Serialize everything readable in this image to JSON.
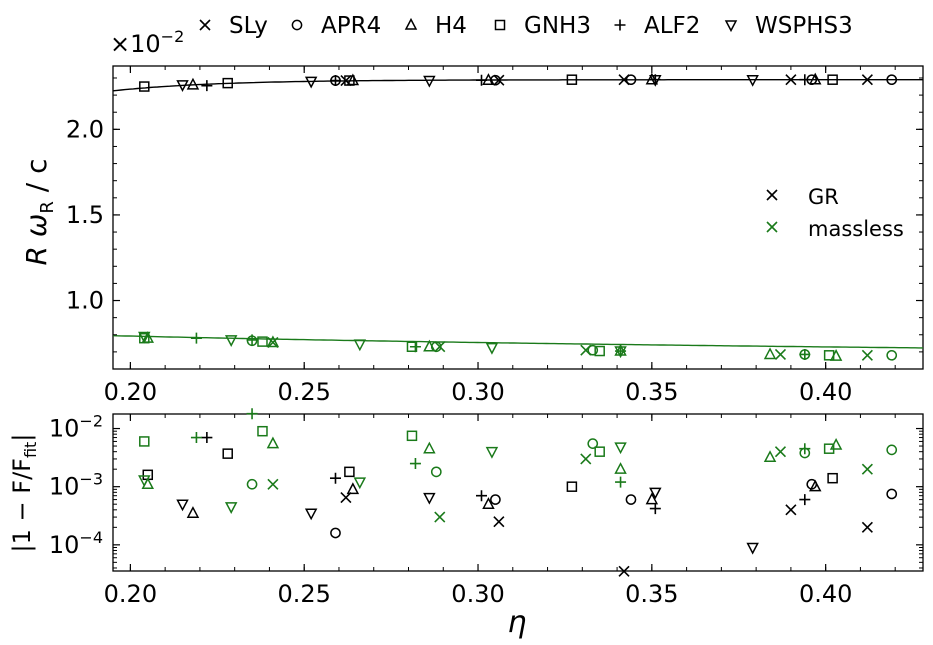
{
  "chart_data": {
    "type": "scatter",
    "xlabel": "η",
    "x_ticks": [
      "0.20",
      "0.25",
      "0.30",
      "0.35",
      "0.40"
    ],
    "x_tick_values": [
      0.2,
      0.25,
      0.3,
      0.35,
      0.4
    ],
    "xlim": [
      0.195,
      0.428
    ],
    "colors": {
      "GR": "#000000",
      "massless": "#1a7a1a"
    },
    "legend_eos": [
      {
        "name": "SLy",
        "marker": "x"
      },
      {
        "name": "APR4",
        "marker": "circle"
      },
      {
        "name": "H4",
        "marker": "triangle-up"
      },
      {
        "name": "GNH3",
        "marker": "square"
      },
      {
        "name": "ALF2",
        "marker": "plus"
      },
      {
        "name": "WSPHS3",
        "marker": "triangle-down"
      }
    ],
    "legend_models": [
      {
        "name": "GR",
        "color_key": "GR"
      },
      {
        "name": "massless",
        "color_key": "massless"
      }
    ],
    "top": {
      "ylabel_R": "R",
      "ylabel_omega": "ω",
      "ylabel_sub": "R",
      "ylabel_tail": " / c",
      "y_offset_base": "×10",
      "y_offset_exp": "−2",
      "ylim": [
        0.6,
        2.37
      ],
      "y_ticks": [
        "1.0",
        "1.5",
        "2.0"
      ],
      "y_tick_values": [
        1.0,
        1.5,
        2.0
      ],
      "fit_GR": {
        "a": 2.29,
        "b": 0.062,
        "c": 0.205
      },
      "fit_massless": {
        "a": 0.79,
        "b": -0.12,
        "c": 0.205
      },
      "GR_points": [
        {
          "eos": "GNH3",
          "x": 0.204,
          "y": 2.25
        },
        {
          "eos": "WSPHS3",
          "x": 0.215,
          "y": 2.26
        },
        {
          "eos": "H4",
          "x": 0.218,
          "y": 2.26
        },
        {
          "eos": "ALF2",
          "x": 0.222,
          "y": 2.255
        },
        {
          "eos": "GNH3",
          "x": 0.228,
          "y": 2.27
        },
        {
          "eos": "WSPHS3",
          "x": 0.252,
          "y": 2.28
        },
        {
          "eos": "APR4",
          "x": 0.259,
          "y": 2.285
        },
        {
          "eos": "ALF2",
          "x": 0.259,
          "y": 2.285
        },
        {
          "eos": "SLy",
          "x": 0.262,
          "y": 2.285
        },
        {
          "eos": "GNH3",
          "x": 0.263,
          "y": 2.285
        },
        {
          "eos": "H4",
          "x": 0.264,
          "y": 2.285
        },
        {
          "eos": "WSPHS3",
          "x": 0.286,
          "y": 2.285
        },
        {
          "eos": "ALF2",
          "x": 0.301,
          "y": 2.287
        },
        {
          "eos": "H4",
          "x": 0.303,
          "y": 2.287
        },
        {
          "eos": "APR4",
          "x": 0.305,
          "y": 2.287
        },
        {
          "eos": "SLy",
          "x": 0.306,
          "y": 2.287
        },
        {
          "eos": "GNH3",
          "x": 0.327,
          "y": 2.29
        },
        {
          "eos": "SLy",
          "x": 0.342,
          "y": 2.29
        },
        {
          "eos": "APR4",
          "x": 0.344,
          "y": 2.29
        },
        {
          "eos": "H4",
          "x": 0.35,
          "y": 2.29
        },
        {
          "eos": "ALF2",
          "x": 0.351,
          "y": 2.29
        },
        {
          "eos": "WSPHS3",
          "x": 0.351,
          "y": 2.29
        },
        {
          "eos": "WSPHS3",
          "x": 0.379,
          "y": 2.29
        },
        {
          "eos": "SLy",
          "x": 0.39,
          "y": 2.29
        },
        {
          "eos": "ALF2",
          "x": 0.394,
          "y": 2.29
        },
        {
          "eos": "APR4",
          "x": 0.396,
          "y": 2.29
        },
        {
          "eos": "H4",
          "x": 0.397,
          "y": 2.29
        },
        {
          "eos": "GNH3",
          "x": 0.402,
          "y": 2.29
        },
        {
          "eos": "SLy",
          "x": 0.412,
          "y": 2.29
        },
        {
          "eos": "APR4",
          "x": 0.419,
          "y": 2.29
        }
      ],
      "massless_points": [
        {
          "eos": "WSPHS3",
          "x": 0.204,
          "y": 0.79
        },
        {
          "eos": "GNH3",
          "x": 0.204,
          "y": 0.78
        },
        {
          "eos": "H4",
          "x": 0.205,
          "y": 0.78
        },
        {
          "eos": "ALF2",
          "x": 0.219,
          "y": 0.78
        },
        {
          "eos": "WSPHS3",
          "x": 0.229,
          "y": 0.77
        },
        {
          "eos": "APR4",
          "x": 0.235,
          "y": 0.765
        },
        {
          "eos": "ALF2",
          "x": 0.235,
          "y": 0.77
        },
        {
          "eos": "GNH3",
          "x": 0.238,
          "y": 0.76
        },
        {
          "eos": "H4",
          "x": 0.241,
          "y": 0.755
        },
        {
          "eos": "SLy",
          "x": 0.241,
          "y": 0.755
        },
        {
          "eos": "WSPHS3",
          "x": 0.266,
          "y": 0.745
        },
        {
          "eos": "GNH3",
          "x": 0.281,
          "y": 0.73
        },
        {
          "eos": "ALF2",
          "x": 0.282,
          "y": 0.73
        },
        {
          "eos": "H4",
          "x": 0.286,
          "y": 0.73
        },
        {
          "eos": "APR4",
          "x": 0.288,
          "y": 0.73
        },
        {
          "eos": "SLy",
          "x": 0.289,
          "y": 0.73
        },
        {
          "eos": "WSPHS3",
          "x": 0.304,
          "y": 0.725
        },
        {
          "eos": "SLy",
          "x": 0.331,
          "y": 0.71
        },
        {
          "eos": "APR4",
          "x": 0.333,
          "y": 0.71
        },
        {
          "eos": "GNH3",
          "x": 0.335,
          "y": 0.705
        },
        {
          "eos": "H4",
          "x": 0.341,
          "y": 0.705
        },
        {
          "eos": "ALF2",
          "x": 0.341,
          "y": 0.705
        },
        {
          "eos": "WSPHS3",
          "x": 0.341,
          "y": 0.705
        },
        {
          "eos": "H4",
          "x": 0.384,
          "y": 0.685
        },
        {
          "eos": "SLy",
          "x": 0.387,
          "y": 0.685
        },
        {
          "eos": "ALF2",
          "x": 0.394,
          "y": 0.685
        },
        {
          "eos": "APR4",
          "x": 0.394,
          "y": 0.685
        },
        {
          "eos": "GNH3",
          "x": 0.401,
          "y": 0.68
        },
        {
          "eos": "H4",
          "x": 0.403,
          "y": 0.675
        },
        {
          "eos": "SLy",
          "x": 0.412,
          "y": 0.68
        },
        {
          "eos": "APR4",
          "x": 0.419,
          "y": 0.68
        }
      ]
    },
    "bottom": {
      "ylabel": "|1 − F/F",
      "ylabel_sub": "fit",
      "ylabel_tail": "|",
      "yscale": "log",
      "ylim_log10": [
        -4.45,
        -1.75
      ],
      "y_ticks": [
        {
          "base": "10",
          "exp": "−4",
          "log": -4
        },
        {
          "base": "10",
          "exp": "−3",
          "log": -3
        },
        {
          "base": "10",
          "exp": "−2",
          "log": -2
        }
      ],
      "GR_points": [
        {
          "eos": "GNH3",
          "x": 0.205,
          "y": 0.0016
        },
        {
          "eos": "WSPHS3",
          "x": 0.215,
          "y": 0.0005
        },
        {
          "eos": "H4",
          "x": 0.218,
          "y": 0.00035
        },
        {
          "eos": "ALF2",
          "x": 0.222,
          "y": 0.007
        },
        {
          "eos": "GNH3",
          "x": 0.228,
          "y": 0.0037
        },
        {
          "eos": "WSPHS3",
          "x": 0.252,
          "y": 0.00035
        },
        {
          "eos": "APR4",
          "x": 0.259,
          "y": 0.00016
        },
        {
          "eos": "ALF2",
          "x": 0.259,
          "y": 0.0014
        },
        {
          "eos": "SLy",
          "x": 0.262,
          "y": 0.00065
        },
        {
          "eos": "GNH3",
          "x": 0.263,
          "y": 0.0018
        },
        {
          "eos": "H4",
          "x": 0.264,
          "y": 0.0009
        },
        {
          "eos": "WSPHS3",
          "x": 0.286,
          "y": 0.00065
        },
        {
          "eos": "ALF2",
          "x": 0.301,
          "y": 0.0007
        },
        {
          "eos": "H4",
          "x": 0.303,
          "y": 0.0005
        },
        {
          "eos": "APR4",
          "x": 0.305,
          "y": 0.0006
        },
        {
          "eos": "SLy",
          "x": 0.306,
          "y": 0.00025
        },
        {
          "eos": "GNH3",
          "x": 0.327,
          "y": 0.001
        },
        {
          "eos": "SLy",
          "x": 0.342,
          "y": 3.5e-05
        },
        {
          "eos": "APR4",
          "x": 0.344,
          "y": 0.0006
        },
        {
          "eos": "H4",
          "x": 0.35,
          "y": 0.0006
        },
        {
          "eos": "ALF2",
          "x": 0.351,
          "y": 0.00042
        },
        {
          "eos": "WSPHS3",
          "x": 0.351,
          "y": 0.0008
        },
        {
          "eos": "WSPHS3",
          "x": 0.379,
          "y": 9e-05
        },
        {
          "eos": "SLy",
          "x": 0.39,
          "y": 0.0004
        },
        {
          "eos": "ALF2",
          "x": 0.394,
          "y": 0.0006
        },
        {
          "eos": "APR4",
          "x": 0.396,
          "y": 0.0011
        },
        {
          "eos": "H4",
          "x": 0.397,
          "y": 0.001
        },
        {
          "eos": "GNH3",
          "x": 0.402,
          "y": 0.0014
        },
        {
          "eos": "SLy",
          "x": 0.412,
          "y": 0.0002
        },
        {
          "eos": "APR4",
          "x": 0.419,
          "y": 0.00075
        }
      ],
      "massless_points": [
        {
          "eos": "GNH3",
          "x": 0.204,
          "y": 0.006
        },
        {
          "eos": "WSPHS3",
          "x": 0.204,
          "y": 0.0013
        },
        {
          "eos": "H4",
          "x": 0.205,
          "y": 0.0011
        },
        {
          "eos": "ALF2",
          "x": 0.219,
          "y": 0.007
        },
        {
          "eos": "WSPHS3",
          "x": 0.229,
          "y": 0.00045
        },
        {
          "eos": "APR4",
          "x": 0.235,
          "y": 0.0011
        },
        {
          "eos": "ALF2",
          "x": 0.235,
          "y": 0.018
        },
        {
          "eos": "GNH3",
          "x": 0.238,
          "y": 0.009
        },
        {
          "eos": "H4",
          "x": 0.241,
          "y": 0.0055
        },
        {
          "eos": "SLy",
          "x": 0.241,
          "y": 0.0011
        },
        {
          "eos": "WSPHS3",
          "x": 0.266,
          "y": 0.0012
        },
        {
          "eos": "GNH3",
          "x": 0.281,
          "y": 0.0075
        },
        {
          "eos": "ALF2",
          "x": 0.282,
          "y": 0.0025
        },
        {
          "eos": "H4",
          "x": 0.286,
          "y": 0.0045
        },
        {
          "eos": "APR4",
          "x": 0.288,
          "y": 0.0018
        },
        {
          "eos": "SLy",
          "x": 0.289,
          "y": 0.0003
        },
        {
          "eos": "WSPHS3",
          "x": 0.304,
          "y": 0.004
        },
        {
          "eos": "SLy",
          "x": 0.331,
          "y": 0.003
        },
        {
          "eos": "APR4",
          "x": 0.333,
          "y": 0.0055
        },
        {
          "eos": "GNH3",
          "x": 0.335,
          "y": 0.004
        },
        {
          "eos": "H4",
          "x": 0.341,
          "y": 0.002
        },
        {
          "eos": "ALF2",
          "x": 0.341,
          "y": 0.0012
        },
        {
          "eos": "WSPHS3",
          "x": 0.341,
          "y": 0.0048
        },
        {
          "eos": "H4",
          "x": 0.384,
          "y": 0.0032
        },
        {
          "eos": "SLy",
          "x": 0.387,
          "y": 0.004
        },
        {
          "eos": "ALF2",
          "x": 0.394,
          "y": 0.0045
        },
        {
          "eos": "APR4",
          "x": 0.394,
          "y": 0.0038
        },
        {
          "eos": "GNH3",
          "x": 0.401,
          "y": 0.0045
        },
        {
          "eos": "H4",
          "x": 0.403,
          "y": 0.0052
        },
        {
          "eos": "SLy",
          "x": 0.412,
          "y": 0.002
        },
        {
          "eos": "APR4",
          "x": 0.419,
          "y": 0.0043
        }
      ]
    }
  }
}
